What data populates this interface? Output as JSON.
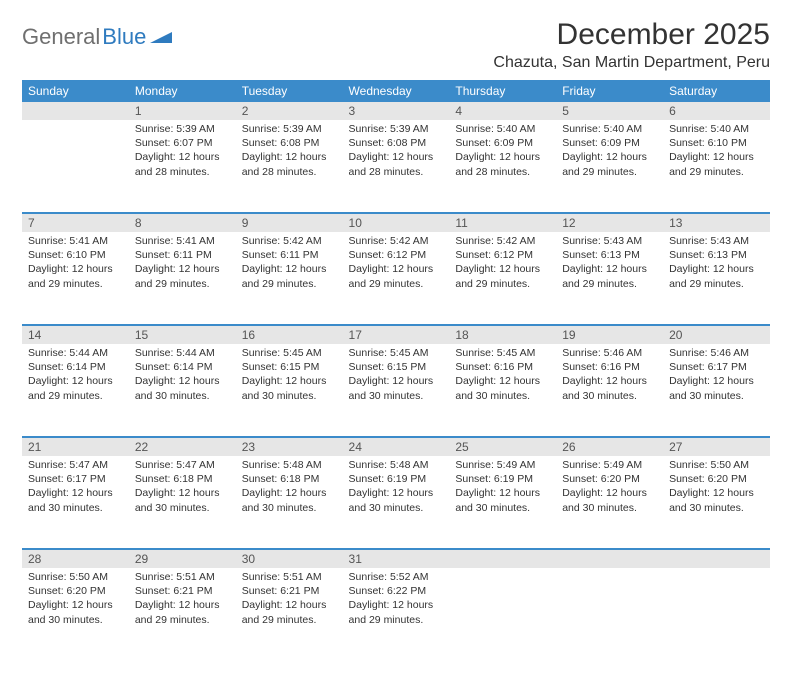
{
  "brand": {
    "part1": "General",
    "part2": "Blue"
  },
  "title": "December 2025",
  "location": "Chazuta, San Martin Department, Peru",
  "colors": {
    "header_bg": "#3b8bca",
    "header_text": "#ffffff",
    "daynum_bg": "#e6e6e6",
    "body_text": "#333333",
    "brand_grey": "#6f6f6f",
    "brand_blue": "#2f7bbf"
  },
  "day_headers": [
    "Sunday",
    "Monday",
    "Tuesday",
    "Wednesday",
    "Thursday",
    "Friday",
    "Saturday"
  ],
  "weeks": [
    [
      {
        "n": "",
        "sr": "",
        "ss": "",
        "dl": ""
      },
      {
        "n": "1",
        "sr": "Sunrise: 5:39 AM",
        "ss": "Sunset: 6:07 PM",
        "dl": "Daylight: 12 hours and 28 minutes."
      },
      {
        "n": "2",
        "sr": "Sunrise: 5:39 AM",
        "ss": "Sunset: 6:08 PM",
        "dl": "Daylight: 12 hours and 28 minutes."
      },
      {
        "n": "3",
        "sr": "Sunrise: 5:39 AM",
        "ss": "Sunset: 6:08 PM",
        "dl": "Daylight: 12 hours and 28 minutes."
      },
      {
        "n": "4",
        "sr": "Sunrise: 5:40 AM",
        "ss": "Sunset: 6:09 PM",
        "dl": "Daylight: 12 hours and 28 minutes."
      },
      {
        "n": "5",
        "sr": "Sunrise: 5:40 AM",
        "ss": "Sunset: 6:09 PM",
        "dl": "Daylight: 12 hours and 29 minutes."
      },
      {
        "n": "6",
        "sr": "Sunrise: 5:40 AM",
        "ss": "Sunset: 6:10 PM",
        "dl": "Daylight: 12 hours and 29 minutes."
      }
    ],
    [
      {
        "n": "7",
        "sr": "Sunrise: 5:41 AM",
        "ss": "Sunset: 6:10 PM",
        "dl": "Daylight: 12 hours and 29 minutes."
      },
      {
        "n": "8",
        "sr": "Sunrise: 5:41 AM",
        "ss": "Sunset: 6:11 PM",
        "dl": "Daylight: 12 hours and 29 minutes."
      },
      {
        "n": "9",
        "sr": "Sunrise: 5:42 AM",
        "ss": "Sunset: 6:11 PM",
        "dl": "Daylight: 12 hours and 29 minutes."
      },
      {
        "n": "10",
        "sr": "Sunrise: 5:42 AM",
        "ss": "Sunset: 6:12 PM",
        "dl": "Daylight: 12 hours and 29 minutes."
      },
      {
        "n": "11",
        "sr": "Sunrise: 5:42 AM",
        "ss": "Sunset: 6:12 PM",
        "dl": "Daylight: 12 hours and 29 minutes."
      },
      {
        "n": "12",
        "sr": "Sunrise: 5:43 AM",
        "ss": "Sunset: 6:13 PM",
        "dl": "Daylight: 12 hours and 29 minutes."
      },
      {
        "n": "13",
        "sr": "Sunrise: 5:43 AM",
        "ss": "Sunset: 6:13 PM",
        "dl": "Daylight: 12 hours and 29 minutes."
      }
    ],
    [
      {
        "n": "14",
        "sr": "Sunrise: 5:44 AM",
        "ss": "Sunset: 6:14 PM",
        "dl": "Daylight: 12 hours and 29 minutes."
      },
      {
        "n": "15",
        "sr": "Sunrise: 5:44 AM",
        "ss": "Sunset: 6:14 PM",
        "dl": "Daylight: 12 hours and 30 minutes."
      },
      {
        "n": "16",
        "sr": "Sunrise: 5:45 AM",
        "ss": "Sunset: 6:15 PM",
        "dl": "Daylight: 12 hours and 30 minutes."
      },
      {
        "n": "17",
        "sr": "Sunrise: 5:45 AM",
        "ss": "Sunset: 6:15 PM",
        "dl": "Daylight: 12 hours and 30 minutes."
      },
      {
        "n": "18",
        "sr": "Sunrise: 5:45 AM",
        "ss": "Sunset: 6:16 PM",
        "dl": "Daylight: 12 hours and 30 minutes."
      },
      {
        "n": "19",
        "sr": "Sunrise: 5:46 AM",
        "ss": "Sunset: 6:16 PM",
        "dl": "Daylight: 12 hours and 30 minutes."
      },
      {
        "n": "20",
        "sr": "Sunrise: 5:46 AM",
        "ss": "Sunset: 6:17 PM",
        "dl": "Daylight: 12 hours and 30 minutes."
      }
    ],
    [
      {
        "n": "21",
        "sr": "Sunrise: 5:47 AM",
        "ss": "Sunset: 6:17 PM",
        "dl": "Daylight: 12 hours and 30 minutes."
      },
      {
        "n": "22",
        "sr": "Sunrise: 5:47 AM",
        "ss": "Sunset: 6:18 PM",
        "dl": "Daylight: 12 hours and 30 minutes."
      },
      {
        "n": "23",
        "sr": "Sunrise: 5:48 AM",
        "ss": "Sunset: 6:18 PM",
        "dl": "Daylight: 12 hours and 30 minutes."
      },
      {
        "n": "24",
        "sr": "Sunrise: 5:48 AM",
        "ss": "Sunset: 6:19 PM",
        "dl": "Daylight: 12 hours and 30 minutes."
      },
      {
        "n": "25",
        "sr": "Sunrise: 5:49 AM",
        "ss": "Sunset: 6:19 PM",
        "dl": "Daylight: 12 hours and 30 minutes."
      },
      {
        "n": "26",
        "sr": "Sunrise: 5:49 AM",
        "ss": "Sunset: 6:20 PM",
        "dl": "Daylight: 12 hours and 30 minutes."
      },
      {
        "n": "27",
        "sr": "Sunrise: 5:50 AM",
        "ss": "Sunset: 6:20 PM",
        "dl": "Daylight: 12 hours and 30 minutes."
      }
    ],
    [
      {
        "n": "28",
        "sr": "Sunrise: 5:50 AM",
        "ss": "Sunset: 6:20 PM",
        "dl": "Daylight: 12 hours and 30 minutes."
      },
      {
        "n": "29",
        "sr": "Sunrise: 5:51 AM",
        "ss": "Sunset: 6:21 PM",
        "dl": "Daylight: 12 hours and 29 minutes."
      },
      {
        "n": "30",
        "sr": "Sunrise: 5:51 AM",
        "ss": "Sunset: 6:21 PM",
        "dl": "Daylight: 12 hours and 29 minutes."
      },
      {
        "n": "31",
        "sr": "Sunrise: 5:52 AM",
        "ss": "Sunset: 6:22 PM",
        "dl": "Daylight: 12 hours and 29 minutes."
      },
      {
        "n": "",
        "sr": "",
        "ss": "",
        "dl": ""
      },
      {
        "n": "",
        "sr": "",
        "ss": "",
        "dl": ""
      },
      {
        "n": "",
        "sr": "",
        "ss": "",
        "dl": ""
      }
    ]
  ]
}
